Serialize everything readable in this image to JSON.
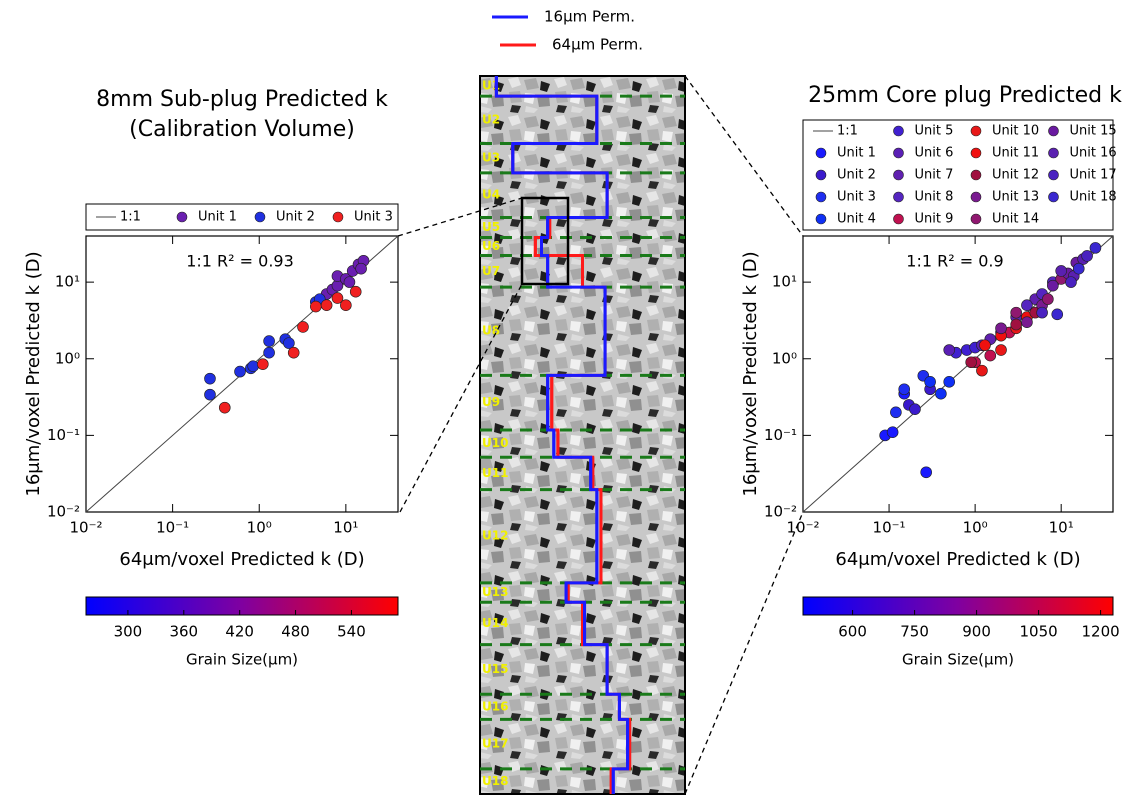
{
  "chart_data": [
    {
      "type": "scatter",
      "title": [
        "8mm Sub-plug Predicted k",
        "(Calibration Volume)"
      ],
      "x_label": "64μm/voxel Predicted k (D)",
      "y_label": "16μm/voxel Predicted k (D)",
      "annotation": "1:1 R² = 0.93",
      "one_to_one_label": "1:1",
      "log_scale": true,
      "legend_columns": 4,
      "xlim": [
        0.01,
        40
      ],
      "ylim": [
        0.01,
        40
      ],
      "xticks": [
        {
          "value": 0.01,
          "label": "10⁻²"
        },
        {
          "value": 0.1,
          "label": "10⁻¹"
        },
        {
          "value": 1,
          "label": "10⁰"
        },
        {
          "value": 10,
          "label": "10¹"
        }
      ],
      "yticks": [
        {
          "value": 0.01,
          "label": "10⁻²"
        },
        {
          "value": 0.1,
          "label": "10⁻¹"
        },
        {
          "value": 1,
          "label": "10⁰"
        },
        {
          "value": 10,
          "label": "10¹"
        }
      ],
      "series": [
        {
          "name": "Unit 1",
          "color": "#6a1fb0",
          "x": [
            6,
            7,
            8,
            8,
            10,
            12,
            14,
            16,
            11,
            15
          ],
          "values": [
            7,
            8,
            9,
            12,
            11,
            14,
            17,
            19,
            10,
            15
          ]
        },
        {
          "name": "Unit 2",
          "color": "#2030e0",
          "x": [
            0.27,
            0.27,
            0.6,
            0.8,
            0.85,
            1.3,
            1.3,
            2,
            2.2,
            4.5,
            5
          ],
          "values": [
            0.55,
            0.34,
            0.68,
            0.75,
            0.8,
            1.7,
            1.2,
            1.8,
            1.6,
            5.5,
            6
          ]
        },
        {
          "name": "Unit 3",
          "color": "#f02020",
          "x": [
            0.4,
            1.1,
            2.5,
            3.2,
            4.5,
            6,
            8,
            10,
            13
          ],
          "values": [
            0.23,
            0.85,
            1.2,
            2.6,
            4.8,
            5,
            6.2,
            5,
            7.5
          ]
        }
      ],
      "colorbar": {
        "label": "Grain Size(μm)",
        "lim": [
          255,
          590
        ],
        "ticks": [
          300,
          360,
          420,
          480,
          540
        ],
        "colors": [
          "#0000ff",
          "#8000a0",
          "#ff0000"
        ]
      }
    },
    {
      "type": "step",
      "legend": [
        {
          "name": "16μm Perm.",
          "color": "#1a1aff"
        },
        {
          "name": "64μm Perm.",
          "color": "#ff1a1a"
        }
      ],
      "categories": [
        "U1",
        "U2",
        "U3",
        "U4",
        "U5",
        "U6",
        "U7",
        "U8",
        "U9",
        "U10",
        "U11",
        "U12",
        "U13",
        "U14",
        "U15",
        "U16",
        "U17",
        "U18"
      ],
      "unit_bounds": [
        0,
        0.028,
        0.094,
        0.135,
        0.197,
        0.225,
        0.25,
        0.294,
        0.417,
        0.493,
        0.531,
        0.576,
        0.706,
        0.733,
        0.792,
        0.861,
        0.896,
        0.965,
        1
      ],
      "xlim": [
        0,
        1
      ],
      "ylim": [
        0,
        1
      ],
      "series": [
        {
          "name": "16μm Perm.",
          "color": "#1a1aff",
          "values": [
            0.08,
            0.57,
            0.16,
            0.62,
            0.33,
            0.3,
            0.33,
            0.61,
            0.33,
            0.36,
            0.54,
            0.57,
            0.42,
            0.51,
            0.62,
            0.68,
            0.72,
            0.65
          ]
        },
        {
          "name": "64μm Perm.",
          "color": "#ff1a1a",
          "values": [
            0.08,
            0.57,
            0.16,
            0.62,
            0.34,
            0.27,
            0.5,
            0.61,
            0.35,
            0.38,
            0.55,
            0.59,
            0.43,
            0.5,
            0.62,
            0.68,
            0.73,
            0.64
          ]
        }
      ]
    },
    {
      "type": "scatter",
      "title": [
        "25mm Core plug Predicted k"
      ],
      "x_label": "64μm/voxel Predicted k (D)",
      "y_label": "16μm/voxel Predicted k (D)",
      "annotation": "1:1 R² = 0.9",
      "one_to_one_label": "1:1",
      "log_scale": true,
      "legend_columns": 4,
      "xlim": [
        0.01,
        40
      ],
      "ylim": [
        0.01,
        40
      ],
      "xticks": [
        {
          "value": 0.01,
          "label": "10⁻²"
        },
        {
          "value": 0.1,
          "label": "10⁻¹"
        },
        {
          "value": 1,
          "label": "10⁰"
        },
        {
          "value": 10,
          "label": "10¹"
        }
      ],
      "yticks": [
        {
          "value": 0.01,
          "label": "10⁻²"
        },
        {
          "value": 0.1,
          "label": "10⁻¹"
        },
        {
          "value": 1,
          "label": "10⁰"
        },
        {
          "value": 10,
          "label": "10¹"
        }
      ],
      "series": [
        {
          "name": "Unit 1",
          "color": "#1a1aff",
          "x": [
            0.09,
            0.11,
            0.27,
            0.15
          ],
          "values": [
            0.1,
            0.11,
            0.033,
            0.35
          ]
        },
        {
          "name": "Unit 2",
          "color": "#3a1acc",
          "x": [
            0.17,
            0.2,
            0.3
          ],
          "values": [
            0.25,
            0.22,
            0.4
          ]
        },
        {
          "name": "Unit 3",
          "color": "#1f2ef0",
          "x": [
            0.12,
            0.15,
            0.25
          ],
          "values": [
            0.2,
            0.4,
            0.6
          ]
        },
        {
          "name": "Unit 4",
          "color": "#0f30f5",
          "x": [
            0.3,
            0.4,
            0.5
          ],
          "values": [
            0.5,
            0.35,
            0.5
          ]
        },
        {
          "name": "Unit 5",
          "color": "#4020d0",
          "x": [
            0.6,
            0.8,
            1.0
          ],
          "values": [
            1.2,
            1.3,
            1.4
          ]
        },
        {
          "name": "Unit 6",
          "color": "#5a1fb5",
          "x": [
            0.5,
            1.2,
            2
          ],
          "values": [
            1.3,
            1.5,
            2.2
          ]
        },
        {
          "name": "Unit 7",
          "color": "#6020b0",
          "x": [
            1.5,
            3,
            5
          ],
          "values": [
            1.8,
            3.5,
            6
          ]
        },
        {
          "name": "Unit 8",
          "color": "#5525c0",
          "x": [
            4,
            6,
            8
          ],
          "values": [
            5,
            7,
            10
          ]
        },
        {
          "name": "Unit 9",
          "color": "#c01050",
          "x": [
            1,
            1.5,
            2.5
          ],
          "values": [
            0.9,
            1.1,
            2.2
          ]
        },
        {
          "name": "Unit 10",
          "color": "#e81818",
          "x": [
            1.2,
            2,
            3
          ],
          "values": [
            0.7,
            1.3,
            2.5
          ]
        },
        {
          "name": "Unit 11",
          "color": "#f01010",
          "x": [
            1.3,
            2,
            4
          ],
          "values": [
            1.5,
            2,
            3.5
          ]
        },
        {
          "name": "Unit 12",
          "color": "#a01040",
          "x": [
            0.9,
            3,
            5
          ],
          "values": [
            0.9,
            2.8,
            4
          ]
        },
        {
          "name": "Unit 13",
          "color": "#7a1a90",
          "x": [
            2,
            4,
            6
          ],
          "values": [
            2.5,
            3,
            5
          ]
        },
        {
          "name": "Unit 14",
          "color": "#901870",
          "x": [
            3,
            7,
            10
          ],
          "values": [
            4,
            6,
            11
          ]
        },
        {
          "name": "Unit 15",
          "color": "#6a1aa0",
          "x": [
            8,
            12,
            15
          ],
          "values": [
            9,
            13,
            18
          ]
        },
        {
          "name": "Unit 16",
          "color": "#5a20b0",
          "x": [
            10,
            14,
            18
          ],
          "values": [
            14,
            12,
            20
          ]
        },
        {
          "name": "Unit 17",
          "color": "#4a22c0",
          "x": [
            6,
            13,
            20
          ],
          "values": [
            4,
            10,
            22
          ]
        },
        {
          "name": "Unit 18",
          "color": "#3a28d0",
          "x": [
            9,
            16,
            25
          ],
          "values": [
            3.8,
            15,
            28
          ]
        }
      ],
      "colorbar": {
        "label": "Grain Size(μm)",
        "lim": [
          480,
          1230
        ],
        "ticks": [
          600,
          750,
          900,
          1050,
          1200
        ],
        "colors": [
          "#0000ff",
          "#8000a0",
          "#ff0000"
        ]
      }
    }
  ]
}
